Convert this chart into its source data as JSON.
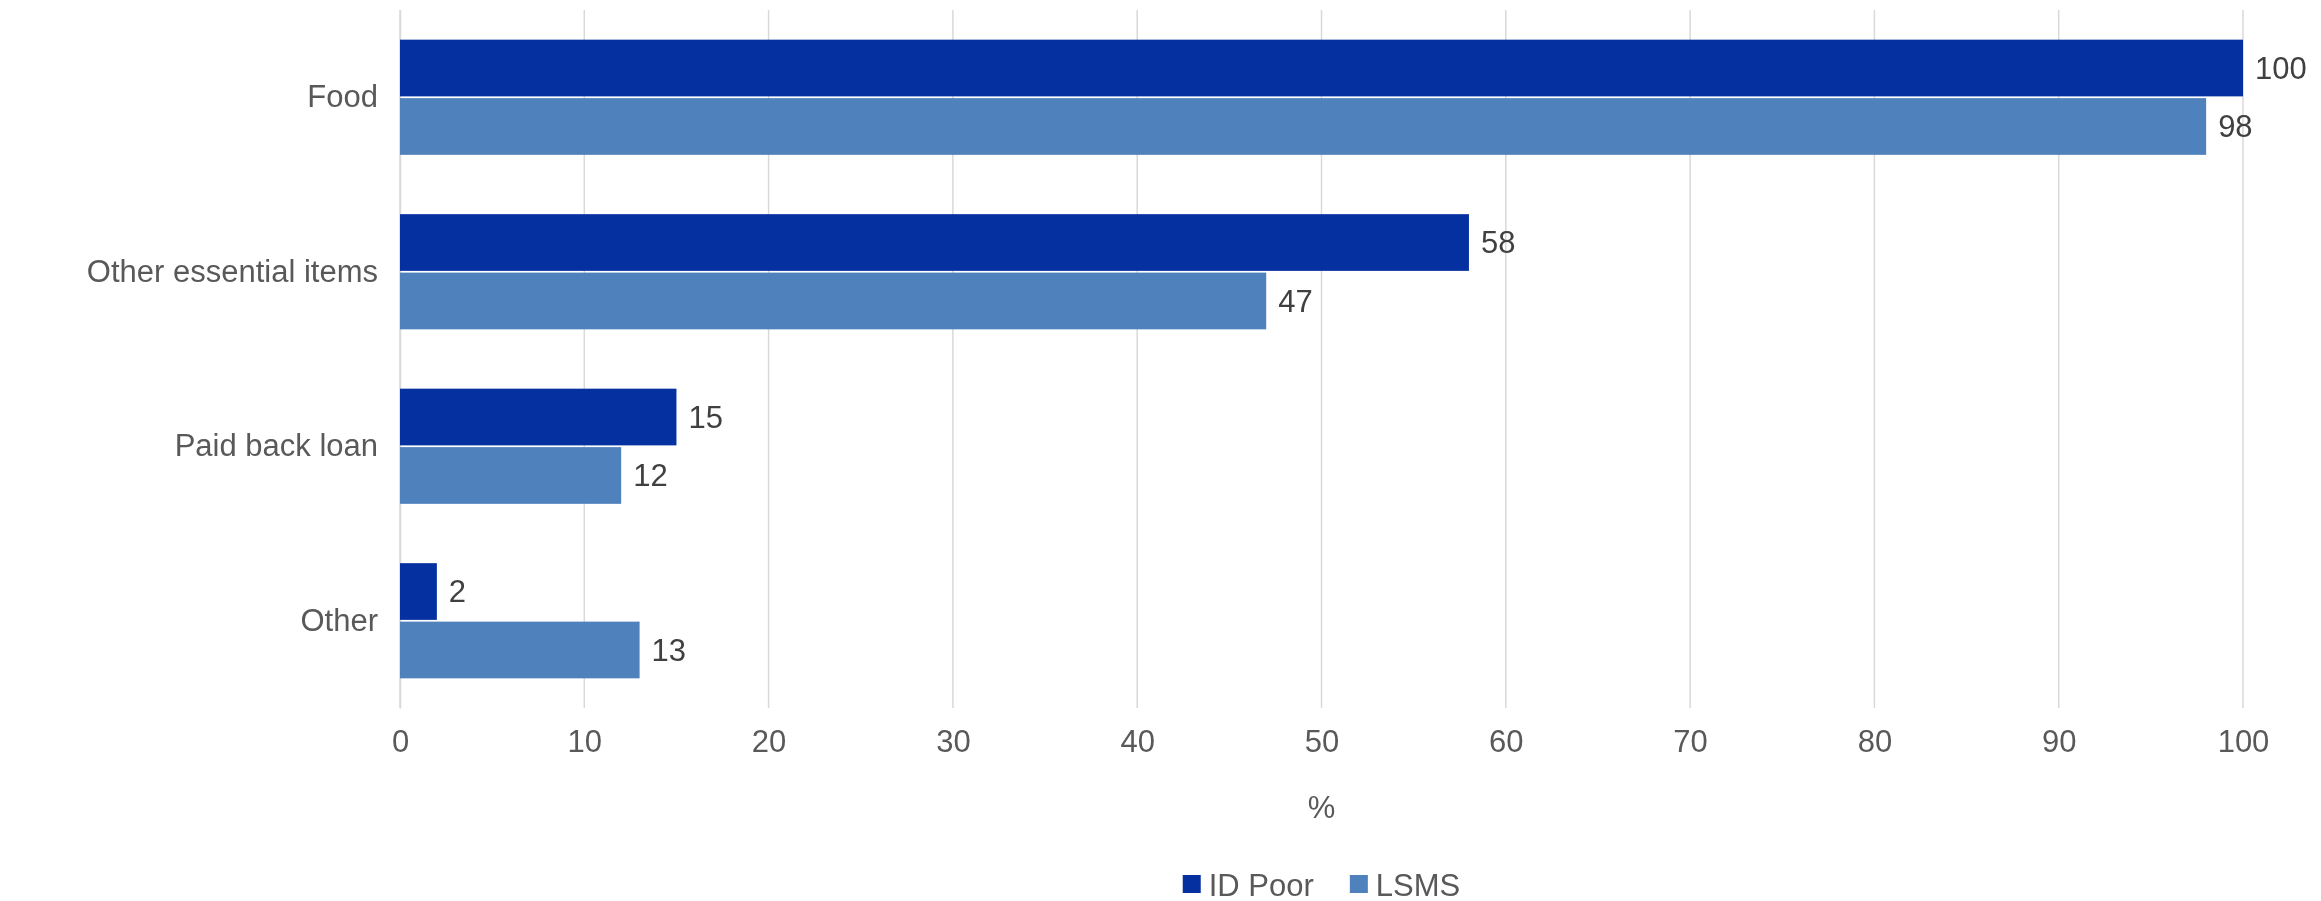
{
  "chart_data": {
    "type": "bar",
    "orientation": "horizontal",
    "xlabel": "%",
    "categories": [
      "Food",
      "Other essential items",
      "Paid back loan",
      "Other"
    ],
    "series": [
      {
        "name": "ID Poor",
        "color": "#0530a0",
        "values": [
          100,
          58,
          15,
          2
        ]
      },
      {
        "name": "LSMS",
        "color": "#4f81bd",
        "values": [
          98,
          47,
          12,
          13
        ]
      }
    ],
    "xlim": [
      0,
      100
    ],
    "xticks": [
      0,
      10,
      20,
      30,
      40,
      50,
      60,
      70,
      80,
      90,
      100
    ],
    "grid": "x",
    "legend": "bottom",
    "data_labels": true
  }
}
